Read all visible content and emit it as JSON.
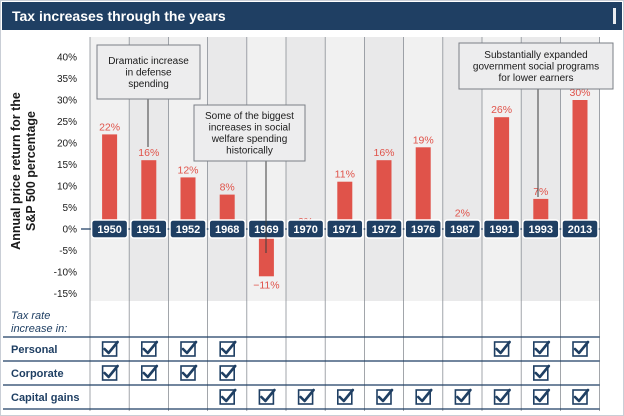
{
  "title": "Tax increases through the years",
  "chart_data": {
    "type": "bar",
    "title": "Tax increases through the years",
    "ylabel": "Annual price return for the S&P 500 percentage",
    "ylim": [
      -15,
      40
    ],
    "yticks": [
      "40%",
      "35%",
      "30%",
      "25%",
      "20%",
      "15%",
      "10%",
      "5%",
      "0%",
      "-5%",
      "-10%",
      "-15%"
    ],
    "ytick_values": [
      40,
      35,
      30,
      25,
      20,
      15,
      10,
      5,
      0,
      -5,
      -10,
      -15
    ],
    "categories": [
      "1950",
      "1951",
      "1952",
      "1968",
      "1969",
      "1970",
      "1971",
      "1972",
      "1976",
      "1987",
      "1991",
      "1993",
      "2013"
    ],
    "values": [
      22,
      16,
      12,
      8,
      -11,
      0,
      11,
      16,
      19,
      2,
      26,
      7,
      30
    ],
    "value_labels": [
      "22%",
      "16%",
      "12%",
      "8%",
      "−11%",
      "0%",
      "11%",
      "16%",
      "19%",
      "2%",
      "26%",
      "7%",
      "30%"
    ],
    "bar_color": "#e0534a",
    "year_badge_color": "#1f3f63",
    "annotations": [
      {
        "text": [
          "Dramatic increase",
          "in defense",
          "spending"
        ],
        "category": "1951"
      },
      {
        "text": [
          "Some of the biggest",
          "increases in social",
          "welfare spending",
          "historically"
        ],
        "category": "1969"
      },
      {
        "text": [
          "Substantially expanded",
          "government social programs",
          "for lower earners"
        ],
        "category": "1993"
      }
    ],
    "tax_table": {
      "heading": [
        "Tax rate",
        "increase in:"
      ],
      "rows": [
        {
          "label": "Personal",
          "checks": [
            true,
            true,
            true,
            true,
            false,
            false,
            false,
            false,
            false,
            false,
            true,
            true,
            true
          ]
        },
        {
          "label": "Corporate",
          "checks": [
            true,
            true,
            true,
            true,
            false,
            false,
            false,
            false,
            false,
            false,
            false,
            true,
            false
          ]
        },
        {
          "label": "Capital gains",
          "checks": [
            false,
            false,
            false,
            true,
            true,
            true,
            true,
            true,
            true,
            true,
            true,
            true,
            true
          ]
        }
      ]
    }
  }
}
